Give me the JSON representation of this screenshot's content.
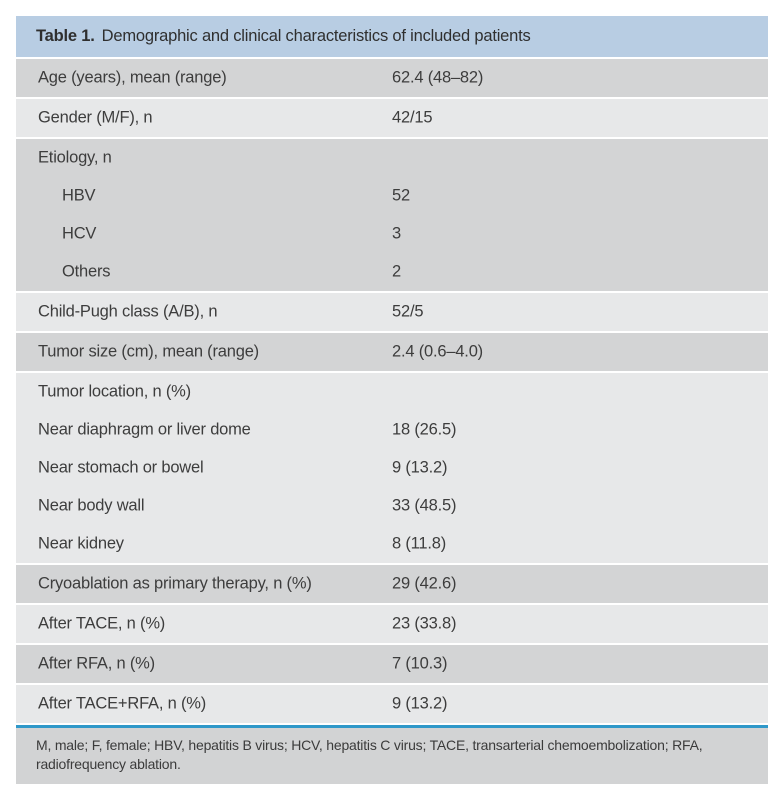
{
  "colors": {
    "header_blue": "#b8cde3",
    "row_dark": "#d3d4d5",
    "row_light": "#e7e8e9",
    "footnote_gray": "#d2d3d4",
    "divider_blue": "#2f98c9",
    "text": "#3b3b3b"
  },
  "table": {
    "title_prefix": "Table 1.",
    "title_text": "Demographic and clinical characteristics of included patients",
    "blocks": [
      {
        "shade": "dark",
        "lines": [
          {
            "label": "Age (years), mean (range)",
            "value": "62.4 (48–82)",
            "indent": 0
          }
        ]
      },
      {
        "shade": "light",
        "lines": [
          {
            "label": "Gender (M/F), n",
            "value": "42/15",
            "indent": 0
          }
        ]
      },
      {
        "shade": "dark",
        "lines": [
          {
            "label": "Etiology, n",
            "value": "",
            "indent": 0
          },
          {
            "label": "HBV",
            "value": "52",
            "indent": 1
          },
          {
            "label": "HCV",
            "value": "3",
            "indent": 1
          },
          {
            "label": "Others",
            "value": "2",
            "indent": 1
          }
        ]
      },
      {
        "shade": "light",
        "lines": [
          {
            "label": "Child-Pugh class (A/B), n",
            "value": "52/5",
            "indent": 0
          }
        ]
      },
      {
        "shade": "dark",
        "lines": [
          {
            "label": "Tumor size (cm), mean (range)",
            "value": "2.4 (0.6–4.0)",
            "indent": 0
          }
        ]
      },
      {
        "shade": "light",
        "lines": [
          {
            "label": "Tumor location, n (%)",
            "value": "",
            "indent": 0
          },
          {
            "label": "Near diaphragm or liver dome",
            "value": "18 (26.5)",
            "indent": 0
          },
          {
            "label": "Near stomach or bowel",
            "value": "9 (13.2)",
            "indent": 0
          },
          {
            "label": "Near body wall",
            "value": "33 (48.5)",
            "indent": 0
          },
          {
            "label": "Near kidney",
            "value": "8 (11.8)",
            "indent": 0
          }
        ]
      },
      {
        "shade": "dark",
        "lines": [
          {
            "label": "Cryoablation as primary therapy, n (%)",
            "value": "29 (42.6)",
            "indent": 0
          }
        ]
      },
      {
        "shade": "light",
        "lines": [
          {
            "label": "After TACE, n (%)",
            "value": "23 (33.8)",
            "indent": 0
          }
        ]
      },
      {
        "shade": "dark",
        "lines": [
          {
            "label": "After RFA, n (%)",
            "value": "7 (10.3)",
            "indent": 0
          }
        ]
      },
      {
        "shade": "light",
        "lines": [
          {
            "label": "After TACE+RFA, n (%)",
            "value": "9 (13.2)",
            "indent": 0
          }
        ]
      }
    ],
    "footnote_lines": [
      "M, male; F, female; HBV, hepatitis B virus; HCV, hepatitis C virus; TACE, transarterial chemoembolization; RFA,",
      "radiofrequency ablation."
    ]
  }
}
